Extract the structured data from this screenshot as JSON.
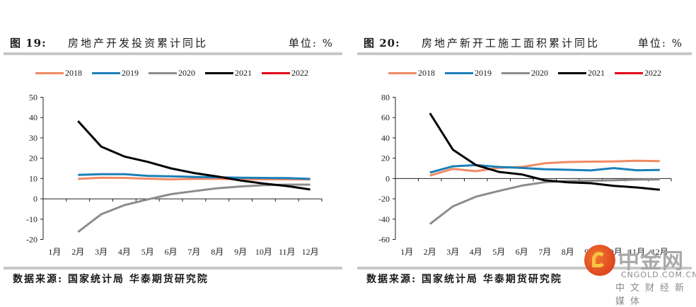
{
  "watermark": {
    "brand": "中金网",
    "url": "CNGOLD.COM.CN",
    "tagline": "中文财经新媒体"
  },
  "colors": {
    "2018": "#f08a64",
    "2019": "#1a80b8",
    "2020": "#8c8c8c",
    "2021": "#000000",
    "2022": "#e0001a"
  },
  "panels": [
    {
      "figure_label": "图 19:",
      "title": "房地产开发投资累计同比",
      "unit": "单位: %",
      "source": "数据来源: 国家统计局 华泰期货研究院"
    },
    {
      "figure_label": "图 20:",
      "title": "房地产新开工施工面积累计同比",
      "unit": "单位: %",
      "source": "数据来源: 国家统计局 华泰期货研究院"
    }
  ],
  "legend": [
    "2018",
    "2019",
    "2020",
    "2021",
    "2022"
  ],
  "chart_data": [
    {
      "type": "line",
      "title": "房地产开发投资累计同比",
      "xlabel": "",
      "ylabel": "单位: %",
      "categories": [
        "1月",
        "2月",
        "3月",
        "4月",
        "5月",
        "6月",
        "7月",
        "8月",
        "9月",
        "10月",
        "11月",
        "12月"
      ],
      "ylim": [
        -20,
        50
      ],
      "yticks": [
        -20,
        -10,
        0,
        10,
        20,
        30,
        40,
        50
      ],
      "grid": false,
      "legend_position": "top",
      "series": [
        {
          "name": "2018",
          "values": [
            null,
            9.8,
            10.4,
            10.3,
            9.9,
            9.6,
            9.8,
            9.8,
            9.7,
            9.6,
            9.6,
            9.5
          ]
        },
        {
          "name": "2019",
          "values": [
            null,
            11.8,
            12.1,
            12.1,
            11.3,
            11.1,
            10.8,
            10.6,
            10.4,
            10.3,
            10.2,
            9.8
          ]
        },
        {
          "name": "2020",
          "values": [
            null,
            -16.3,
            -7.6,
            -3.1,
            -0.3,
            2.3,
            3.8,
            5.2,
            6.1,
            6.7,
            7.0,
            7.0
          ]
        },
        {
          "name": "2021",
          "values": [
            null,
            38.3,
            25.7,
            20.8,
            18.2,
            15.0,
            12.7,
            11.0,
            9.0,
            7.5,
            6.3,
            4.6
          ]
        },
        {
          "name": "2022",
          "values": [
            null,
            null,
            null,
            null,
            null,
            null,
            null,
            null,
            null,
            null,
            null,
            null
          ]
        }
      ]
    },
    {
      "type": "line",
      "title": "房地产新开工施工面积累计同比",
      "xlabel": "",
      "ylabel": "单位: %",
      "categories": [
        "1月",
        "2月",
        "3月",
        "4月",
        "5月",
        "6月",
        "7月",
        "8月",
        "9月",
        "10月",
        "11月",
        "12月"
      ],
      "ylim": [
        -60,
        80
      ],
      "yticks": [
        -60,
        -40,
        -20,
        0,
        20,
        40,
        60,
        80
      ],
      "grid": false,
      "legend_position": "top",
      "series": [
        {
          "name": "2018",
          "values": [
            null,
            2.9,
            9.5,
            7.2,
            10.5,
            11.4,
            15.0,
            16.3,
            16.6,
            16.8,
            17.5,
            17.2
          ]
        },
        {
          "name": "2019",
          "values": [
            null,
            5.8,
            12.0,
            13.2,
            11.4,
            10.4,
            9.1,
            8.6,
            8.0,
            10.3,
            8.1,
            8.4
          ]
        },
        {
          "name": "2020",
          "values": [
            null,
            -44.8,
            -27.4,
            -17.9,
            -12.2,
            -7.0,
            -3.6,
            -2.5,
            -2.2,
            -1.8,
            -1.1,
            -0.9
          ]
        },
        {
          "name": "2021",
          "values": [
            null,
            64.3,
            28.4,
            13.3,
            6.5,
            4.0,
            -1.8,
            -3.7,
            -4.6,
            -7.2,
            -8.8,
            -11.1
          ]
        },
        {
          "name": "2022",
          "values": [
            null,
            null,
            null,
            null,
            null,
            null,
            null,
            null,
            null,
            null,
            null,
            null
          ]
        }
      ]
    }
  ]
}
